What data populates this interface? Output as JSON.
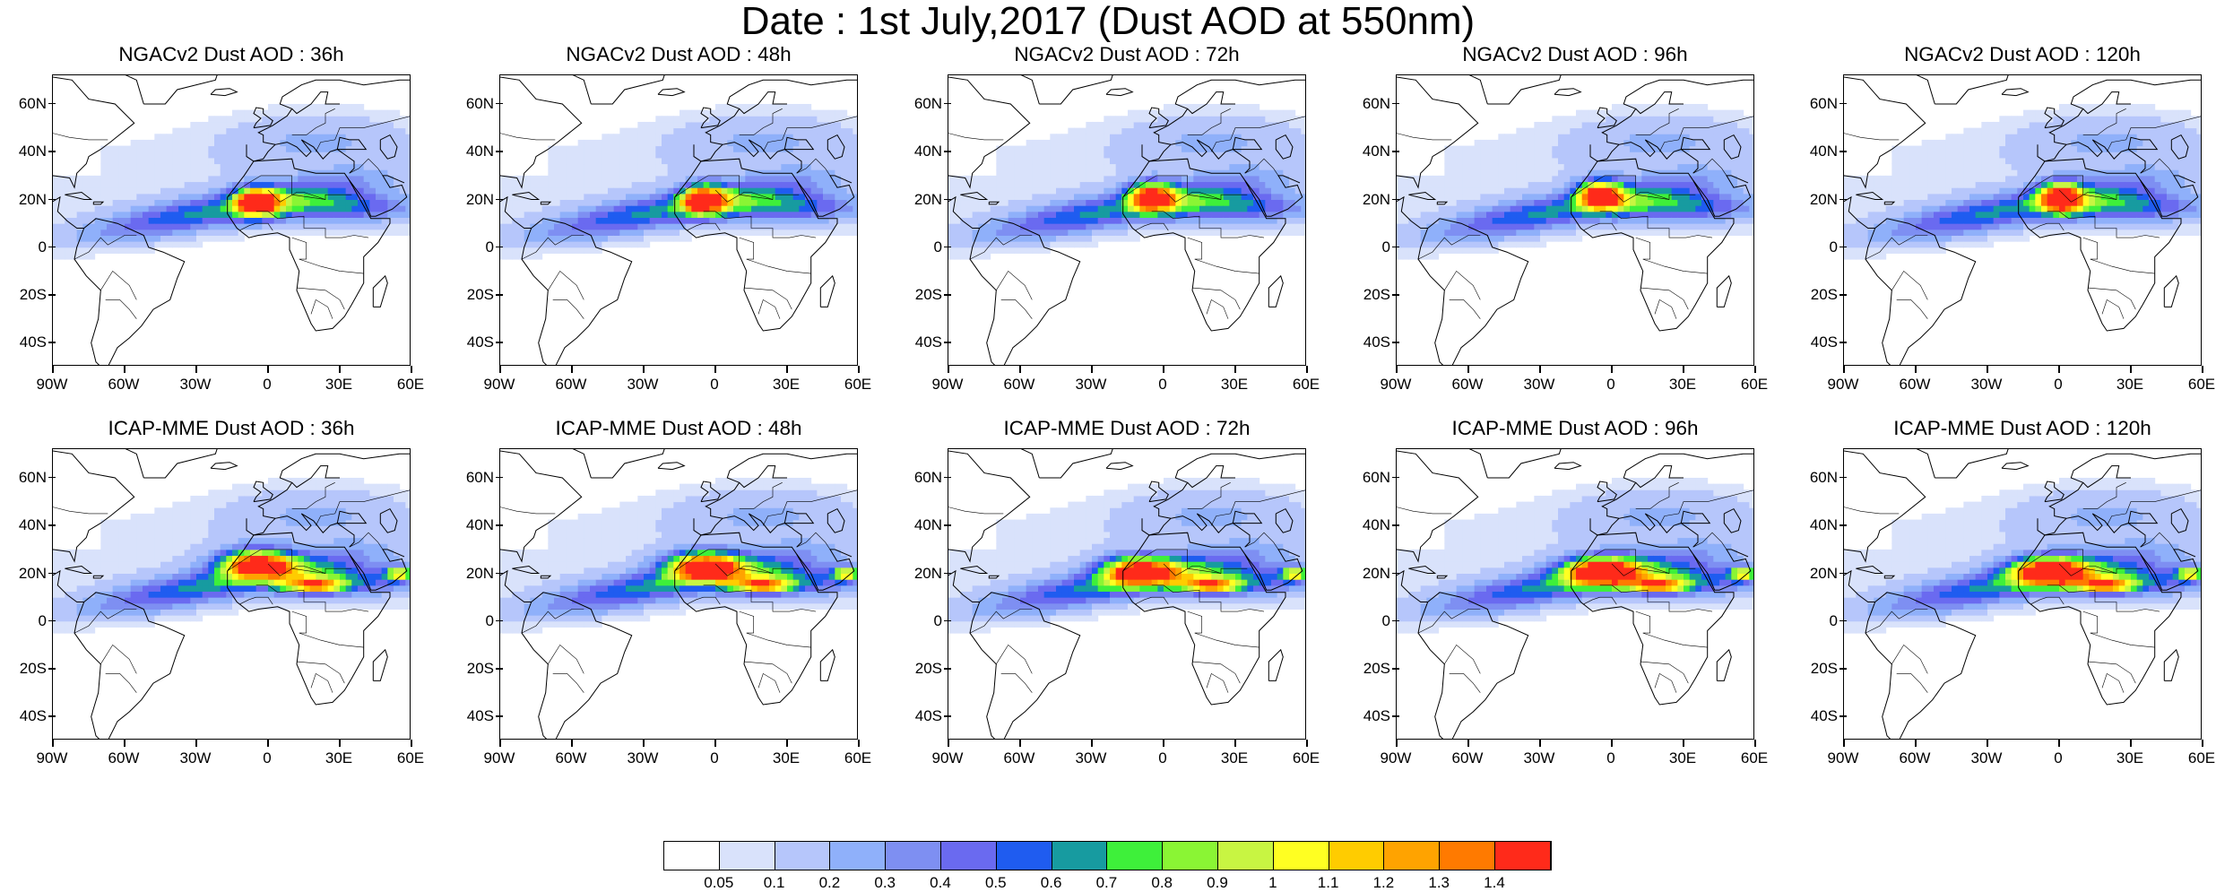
{
  "title": "Date : 1st July,2017 (Dust AOD at 550nm)",
  "rows": [
    {
      "model": "NGACv2",
      "panels": [
        {
          "title": "NGACv2 Dust AOD : 36h",
          "peak_lon": -5,
          "peak_lat": 19
        },
        {
          "title": "NGACv2 Dust AOD : 48h",
          "peak_lon": -5,
          "peak_lat": 20
        },
        {
          "title": "NGACv2 Dust AOD : 72h",
          "peak_lon": -5,
          "peak_lat": 21
        },
        {
          "title": "NGACv2 Dust AOD : 96h",
          "peak_lon": -5,
          "peak_lat": 22
        },
        {
          "title": "NGACv2 Dust AOD : 120h",
          "peak_lon": 0,
          "peak_lat": 21
        }
      ]
    },
    {
      "model": "ICAP-MME",
      "panels": [
        {
          "title": "ICAP-MME Dust AOD : 36h",
          "peak_lon": -5,
          "peak_lat": 24
        },
        {
          "title": "ICAP-MME Dust AOD : 48h",
          "peak_lon": -5,
          "peak_lat": 23
        },
        {
          "title": "ICAP-MME Dust AOD : 72h",
          "peak_lon": -10,
          "peak_lat": 21
        },
        {
          "title": "ICAP-MME Dust AOD : 96h",
          "peak_lon": -5,
          "peak_lat": 21
        },
        {
          "title": "ICAP-MME Dust AOD : 120h",
          "peak_lon": -5,
          "peak_lat": 21
        }
      ]
    }
  ],
  "lat_ticks": [
    "60N",
    "40N",
    "20N",
    "0",
    "20S",
    "40S"
  ],
  "lat_values": [
    60,
    40,
    20,
    0,
    -20,
    -40
  ],
  "lon_ticks": [
    "90W",
    "60W",
    "30W",
    "0",
    "30E",
    "60E"
  ],
  "lon_values": [
    -90,
    -60,
    -30,
    0,
    30,
    60
  ],
  "extent": {
    "lon": [
      -90,
      60
    ],
    "lat": [
      -50,
      72
    ]
  },
  "colorbar": {
    "labels": [
      "0.05",
      "0.1",
      "0.2",
      "0.3",
      "0.4",
      "0.5",
      "0.6",
      "0.7",
      "0.8",
      "0.9",
      "1",
      "1.1",
      "1.2",
      "1.3",
      "1.4"
    ],
    "colors": [
      "#ffffff",
      "#d9e2fb",
      "#b6c6fb",
      "#8fb0fa",
      "#7e8ff2",
      "#6a6af0",
      "#1f5cf0",
      "#179ba0",
      "#3ef03a",
      "#8af534",
      "#c8f542",
      "#ffff22",
      "#ffcc00",
      "#ffa300",
      "#ff7a00",
      "#ff2a1a"
    ]
  }
}
